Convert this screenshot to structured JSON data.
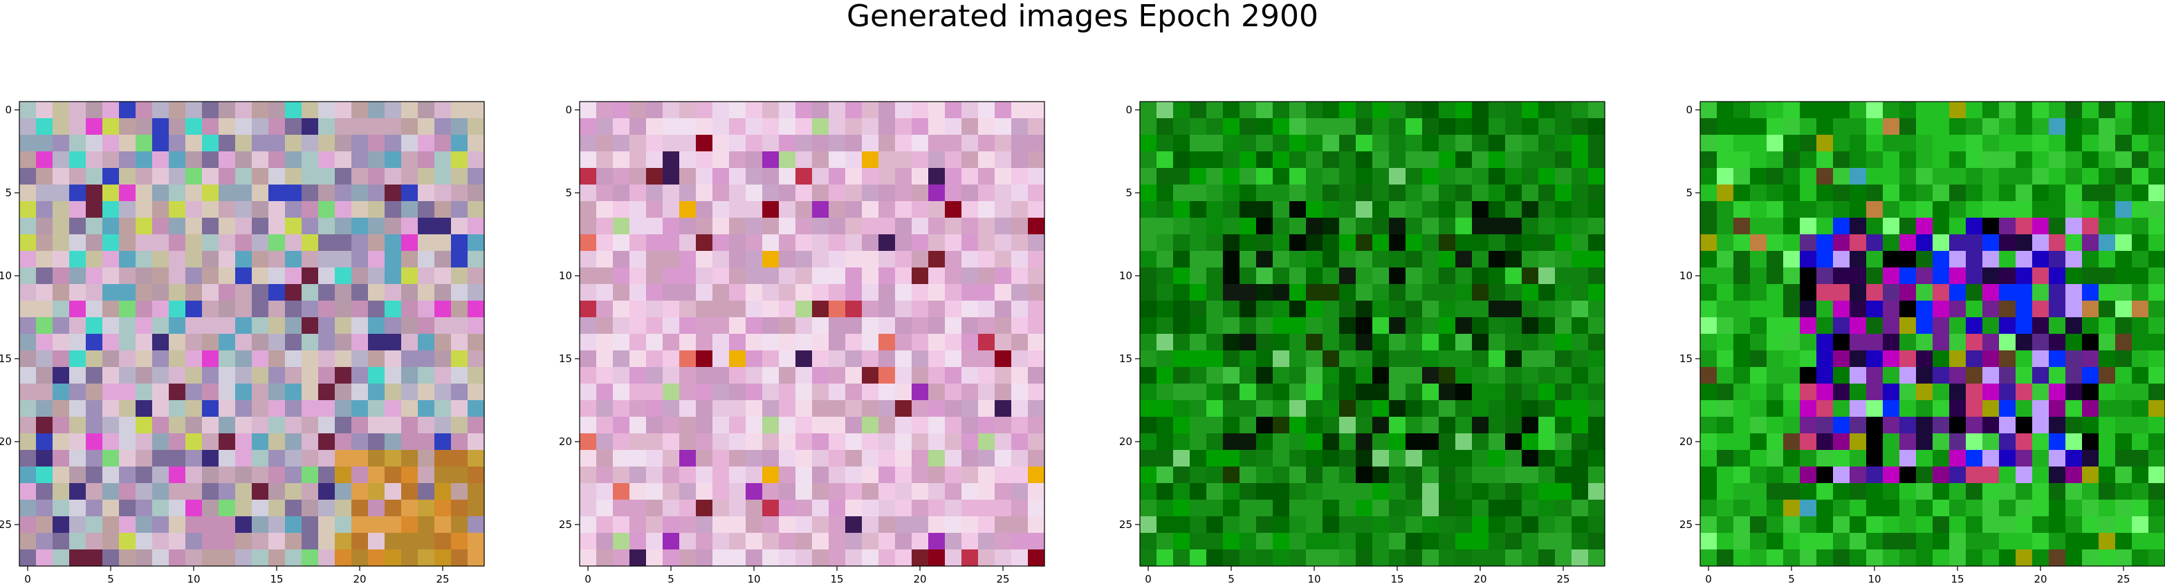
{
  "title": "Generated images Epoch 2900",
  "chart_data": [
    {
      "type": "heatmap",
      "title": "",
      "xlabel": "",
      "ylabel": "",
      "grid_size": 28,
      "xlim": [
        -0.5,
        27.5
      ],
      "ylim": [
        27.5,
        -0.5
      ],
      "xticks": [
        0,
        5,
        10,
        15,
        20,
        25
      ],
      "yticks": [
        0,
        5,
        10,
        15,
        20,
        25
      ],
      "grid": false,
      "palette": [
        "#c9a6b8",
        "#b7b2c9",
        "#d9b6cf",
        "#a9c7c4",
        "#c7c19f",
        "#e3c7d8",
        "#9d8fb9",
        "#b69aa9",
        "#d2d0de",
        "#8fa6b8",
        "#c58fb6",
        "#7d6d9a",
        "#e0a8d8",
        "#5aa6c0",
        "#bfa0a0",
        "#d9c9b9"
      ],
      "accent_colors": [
        "#6b1f3a",
        "#3a2a7a",
        "#2f3fbf",
        "#e23fd0",
        "#3fd9c9",
        "#c9d94a",
        "#7ad978"
      ],
      "bottom_right_colors": [
        "#d98a2a",
        "#c7951f",
        "#b9762a",
        "#e0a04a",
        "#b3852c",
        "#c6a238"
      ]
    },
    {
      "type": "heatmap",
      "title": "",
      "xlabel": "",
      "ylabel": "",
      "grid_size": 28,
      "xlim": [
        -0.5,
        27.5
      ],
      "ylim": [
        27.5,
        -0.5
      ],
      "xticks": [
        0,
        5,
        10,
        15,
        20,
        25
      ],
      "yticks": [
        0,
        5,
        10,
        15,
        20,
        25
      ],
      "grid": false,
      "palette": [
        "#e8b3d9",
        "#f2c9e6",
        "#d99ad0",
        "#f5dbe9",
        "#c99ac2",
        "#e6c6e0",
        "#d6a0c8",
        "#eed5ee",
        "#c8a4c8",
        "#f0e0f0",
        "#dfb7cd",
        "#cda2b8"
      ],
      "accent_colors": [
        "#8a0018",
        "#c0304a",
        "#9a2ab8",
        "#f0b000",
        "#3a1a55",
        "#e87060",
        "#b0d890",
        "#7a1d2a"
      ]
    },
    {
      "type": "heatmap",
      "title": "",
      "xlabel": "",
      "ylabel": "",
      "grid_size": 28,
      "xlim": [
        -0.5,
        27.5
      ],
      "ylim": [
        27.5,
        -0.5
      ],
      "xticks": [
        0,
        5,
        10,
        15,
        20,
        25
      ],
      "yticks": [
        0,
        5,
        10,
        15,
        20,
        25
      ],
      "grid": false,
      "palette": [
        "#006e00",
        "#0a8a0a",
        "#0c7a0c",
        "#1f9a1f",
        "#005c00",
        "#158f15",
        "#2aa52a",
        "#0a6a0a",
        "#00a000",
        "#108010"
      ],
      "dark_colors": [
        "#000a00",
        "#002a00",
        "#0a1a0a",
        "#1a3a00",
        "#003300",
        "#101a10"
      ],
      "bright_colors": [
        "#2fd02f",
        "#40c040",
        "#7ad07a"
      ]
    },
    {
      "type": "heatmap",
      "title": "",
      "xlabel": "",
      "ylabel": "",
      "grid_size": 28,
      "xlim": [
        -0.5,
        27.5
      ],
      "ylim": [
        27.5,
        -0.5
      ],
      "xticks": [
        0,
        5,
        10,
        15,
        20,
        25
      ],
      "yticks": [
        0,
        5,
        10,
        15,
        20,
        25
      ],
      "grid": false,
      "palette": [
        "#0a8a0a",
        "#149a14",
        "#22c022",
        "#0a6a0a",
        "#1fb01f",
        "#2fd02f",
        "#007a00",
        "#38c838"
      ],
      "center_colors": [
        "#1a00c0",
        "#3a1aa0",
        "#8a008a",
        "#c000c0",
        "#000000",
        "#2a004a",
        "#0030ff",
        "#5a2a8a",
        "#1a0a3a",
        "#702090",
        "#c0a0ff",
        "#d04070"
      ],
      "accent_colors": [
        "#c08040",
        "#80ff80",
        "#a0a000",
        "#40a0c0",
        "#604020"
      ]
    }
  ]
}
